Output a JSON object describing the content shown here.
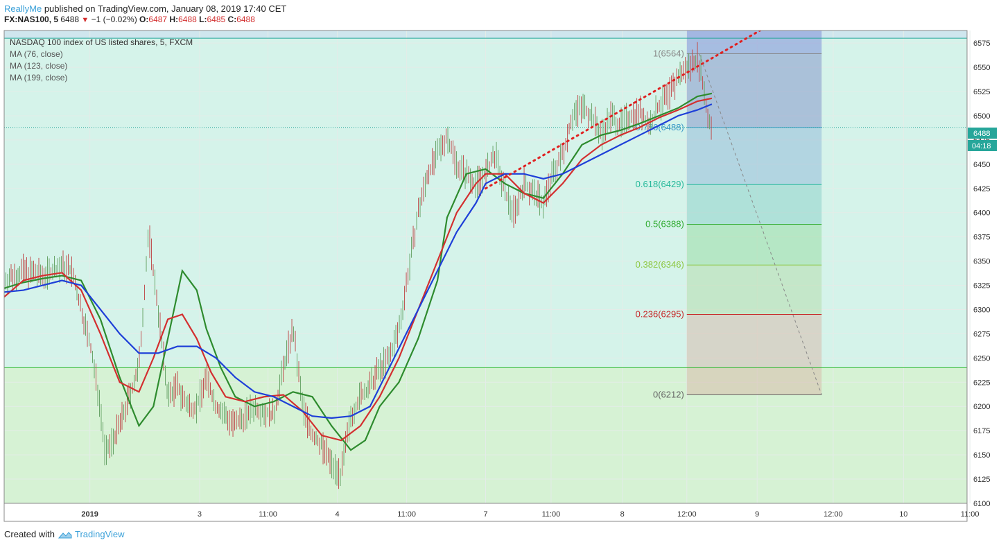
{
  "header": {
    "author": "ReallyMe",
    "published_text": "published on TradingView.com, January 08, 2019 17:40 CET"
  },
  "quote": {
    "symbol": "FX:NAS100, 5",
    "last": "6488",
    "change": "−1 (−0.02%)",
    "o_label": "O:",
    "o": "6487",
    "h_label": "H:",
    "h": "6488",
    "l_label": "L:",
    "l": "6485",
    "c_label": "C:",
    "c": "6488",
    "down_icon": "triangle-down-icon"
  },
  "legend": {
    "title": "NASDAQ 100 index of US listed shares, 5, FXCM",
    "ma1": "MA (76, close)",
    "ma2": "MA (123, close)",
    "ma3": "MA (199, close)"
  },
  "price_badges": {
    "last_price": "6488",
    "countdown": "04:18",
    "badge_color": "#26a69a"
  },
  "footer": {
    "created_with": "Created with",
    "brand": "TradingView",
    "logo_icon": "tradingview-cloud-icon"
  },
  "colors": {
    "ma76": "#2e8b2e",
    "ma123": "#d32f2f",
    "ma199": "#1e3fd8",
    "candle_up": "#6aa56a",
    "candle_down": "#c05050",
    "trendline": "#e02020"
  },
  "chart_data": {
    "type": "line",
    "title": "NASDAQ 100 index of US listed shares, 5, FXCM",
    "ylim": [
      6100,
      6588
    ],
    "y_ticks": [
      "6100",
      "6125",
      "6150",
      "6175",
      "6200",
      "6225",
      "6250",
      "6275",
      "6300",
      "6325",
      "6350",
      "6375",
      "6400",
      "6425",
      "6450",
      "6475",
      "6500",
      "6525",
      "6550",
      "6575"
    ],
    "x_ticks": [
      "2019",
      "3",
      "11:00",
      "4",
      "11:00",
      "7",
      "11:00",
      "8",
      "12:00",
      "9",
      "12:00",
      "10",
      "11:00"
    ],
    "x_ticks_bold": [
      "2019"
    ],
    "x_tick_positions": [
      0.089,
      0.203,
      0.274,
      0.346,
      0.418,
      0.5,
      0.568,
      0.642,
      0.709,
      0.782,
      0.861,
      0.934,
      1.003
    ],
    "grid": true,
    "horizontal_levels": [
      {
        "price": 6580,
        "color": "#26a69a"
      },
      {
        "price": 6240,
        "color": "#2eb82e"
      }
    ],
    "fibonacci": {
      "x_start": 0.709,
      "x_end": 0.849,
      "levels": [
        {
          "label": "1(6564)",
          "price": 6564,
          "color": "#888888",
          "fill": "#8090c8"
        },
        {
          "label": "0.786(6488)",
          "price": 6488,
          "color": "#3a98c8",
          "fill": "#90b8d8"
        },
        {
          "label": "0.618(6429)",
          "price": 6429,
          "color": "#26b89a",
          "fill": "#8ad0c8"
        },
        {
          "label": "0.5(6388)",
          "price": 6388,
          "color": "#2eaa2e",
          "fill": "#96dca0"
        },
        {
          "label": "0.382(6346)",
          "price": 6346,
          "color": "#8cc63e",
          "fill": "#b4dca8"
        },
        {
          "label": "0.236(6295)",
          "price": 6295,
          "color": "#c62828",
          "fill": "#d8b8a8"
        },
        {
          "label": "0(6212)",
          "price": 6212,
          "color": "#666666",
          "fill": "#cfc0b0"
        }
      ]
    },
    "series": [
      {
        "name": "MA (76, close)",
        "color": "#2e8b2e",
        "x": [
          0,
          0.02,
          0.04,
          0.06,
          0.08,
          0.1,
          0.12,
          0.14,
          0.155,
          0.17,
          0.185,
          0.2,
          0.21,
          0.225,
          0.24,
          0.26,
          0.28,
          0.3,
          0.32,
          0.34,
          0.36,
          0.375,
          0.39,
          0.41,
          0.43,
          0.45,
          0.46,
          0.48,
          0.5,
          0.52,
          0.54,
          0.56,
          0.58,
          0.6,
          0.62,
          0.64,
          0.66,
          0.68,
          0.7,
          0.72,
          0.735
        ],
        "y": [
          6322,
          6328,
          6332,
          6335,
          6330,
          6290,
          6230,
          6180,
          6200,
          6270,
          6340,
          6320,
          6280,
          6240,
          6210,
          6200,
          6205,
          6215,
          6210,
          6180,
          6155,
          6165,
          6200,
          6225,
          6270,
          6330,
          6395,
          6440,
          6445,
          6430,
          6420,
          6415,
          6440,
          6470,
          6480,
          6485,
          6492,
          6500,
          6508,
          6520,
          6523
        ]
      },
      {
        "name": "MA (123, close)",
        "color": "#d32f2f",
        "x": [
          0,
          0.02,
          0.04,
          0.06,
          0.08,
          0.1,
          0.12,
          0.14,
          0.155,
          0.17,
          0.185,
          0.2,
          0.215,
          0.23,
          0.25,
          0.27,
          0.29,
          0.31,
          0.33,
          0.35,
          0.37,
          0.39,
          0.41,
          0.43,
          0.45,
          0.47,
          0.49,
          0.5,
          0.52,
          0.54,
          0.56,
          0.58,
          0.6,
          0.62,
          0.64,
          0.66,
          0.68,
          0.7,
          0.72,
          0.735
        ],
        "y": [
          6313,
          6330,
          6335,
          6338,
          6320,
          6275,
          6225,
          6215,
          6250,
          6290,
          6295,
          6270,
          6235,
          6210,
          6205,
          6210,
          6212,
          6195,
          6170,
          6165,
          6180,
          6210,
          6250,
          6300,
          6350,
          6400,
          6430,
          6440,
          6440,
          6420,
          6410,
          6430,
          6455,
          6470,
          6480,
          6488,
          6498,
          6506,
          6515,
          6518
        ]
      },
      {
        "name": "MA (199, close)",
        "color": "#1e3fd8",
        "x": [
          0,
          0.02,
          0.04,
          0.06,
          0.08,
          0.1,
          0.12,
          0.14,
          0.16,
          0.18,
          0.2,
          0.22,
          0.24,
          0.26,
          0.28,
          0.3,
          0.32,
          0.34,
          0.36,
          0.38,
          0.39,
          0.41,
          0.43,
          0.45,
          0.47,
          0.49,
          0.5,
          0.52,
          0.54,
          0.56,
          0.58,
          0.6,
          0.62,
          0.64,
          0.66,
          0.68,
          0.7,
          0.72,
          0.735
        ],
        "y": [
          6318,
          6320,
          6325,
          6330,
          6325,
          6300,
          6275,
          6255,
          6255,
          6262,
          6262,
          6250,
          6230,
          6215,
          6210,
          6200,
          6190,
          6188,
          6190,
          6200,
          6220,
          6260,
          6300,
          6340,
          6380,
          6410,
          6430,
          6440,
          6440,
          6435,
          6440,
          6450,
          6460,
          6470,
          6480,
          6490,
          6500,
          6506,
          6512
        ]
      },
      {
        "name": "price",
        "color": "#7a7a7a",
        "x": [
          0,
          0.02,
          0.04,
          0.06,
          0.07,
          0.08,
          0.09,
          0.1,
          0.105,
          0.12,
          0.14,
          0.15,
          0.16,
          0.17,
          0.18,
          0.19,
          0.2,
          0.21,
          0.22,
          0.24,
          0.26,
          0.28,
          0.29,
          0.3,
          0.31,
          0.32,
          0.33,
          0.34,
          0.35,
          0.36,
          0.37,
          0.38,
          0.39,
          0.4,
          0.41,
          0.42,
          0.43,
          0.44,
          0.45,
          0.46,
          0.47,
          0.48,
          0.49,
          0.5,
          0.51,
          0.52,
          0.53,
          0.54,
          0.55,
          0.56,
          0.57,
          0.58,
          0.59,
          0.6,
          0.61,
          0.62,
          0.63,
          0.64,
          0.65,
          0.66,
          0.67,
          0.68,
          0.69,
          0.7,
          0.71,
          0.72,
          0.725,
          0.73,
          0.735
        ],
        "y": [
          6330,
          6340,
          6335,
          6345,
          6340,
          6300,
          6260,
          6200,
          6150,
          6180,
          6240,
          6380,
          6300,
          6210,
          6220,
          6200,
          6200,
          6230,
          6200,
          6180,
          6200,
          6190,
          6240,
          6280,
          6200,
          6170,
          6160,
          6140,
          6130,
          6190,
          6210,
          6220,
          6240,
          6250,
          6280,
          6340,
          6400,
          6440,
          6460,
          6480,
          6450,
          6440,
          6430,
          6440,
          6460,
          6420,
          6400,
          6430,
          6420,
          6410,
          6440,
          6460,
          6500,
          6510,
          6500,
          6480,
          6500,
          6490,
          6500,
          6505,
          6490,
          6510,
          6520,
          6540,
          6550,
          6560,
          6540,
          6500,
          6488
        ]
      },
      {
        "name": "trendline",
        "color": "#e02020",
        "x": [
          0.5,
          0.785
        ],
        "y": [
          6425,
          6588
        ]
      },
      {
        "name": "projection",
        "color": "#888888",
        "x": [
          0.722,
          0.849
        ],
        "y": [
          6564,
          6212
        ]
      }
    ]
  }
}
